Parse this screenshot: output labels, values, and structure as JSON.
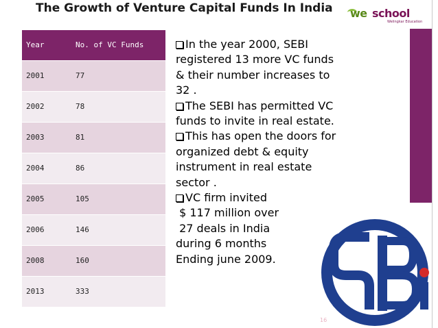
{
  "slide": {
    "title": "The Growth of Venture Capital Funds In India",
    "page_number": "16"
  },
  "logo": {
    "we": "we",
    "school": "school",
    "tagline": "Welingkar Education"
  },
  "table": {
    "headers": [
      "Year",
      "No. of VC Funds"
    ],
    "rows": [
      [
        "2001",
        "77"
      ],
      [
        "2002",
        "78"
      ],
      [
        "2003",
        "81"
      ],
      [
        "2004",
        "86"
      ],
      [
        "2005",
        "105"
      ],
      [
        "2006",
        "146"
      ],
      [
        "2008",
        "160"
      ],
      [
        "2013",
        "333"
      ]
    ]
  },
  "bullets": [
    {
      "lines": [
        "In the year 2000, SEBI",
        "registered 13 more VC funds",
        "& their number increases to",
        "32 ."
      ]
    },
    {
      "lines": [
        "The SEBI has permitted VC",
        "funds to invite in real estate."
      ]
    },
    {
      "lines": [
        "This has open the doors for",
        "organized debt & equity",
        "instrument in real estate",
        "sector ."
      ]
    },
    {
      "lines": [
        "VC firm invited",
        " $ 117 million over",
        " 27 deals in India",
        "during 6 months",
        "Ending june 2009."
      ]
    }
  ],
  "colors": {
    "accent": "#7d2468",
    "row_odd": "#e6d4df",
    "row_even": "#f2ebf0",
    "sebi_blue": "#1f3f8f"
  },
  "icons": {
    "bullet": "checkbox-bullet-icon",
    "sebi": "sebi-logo-icon"
  }
}
